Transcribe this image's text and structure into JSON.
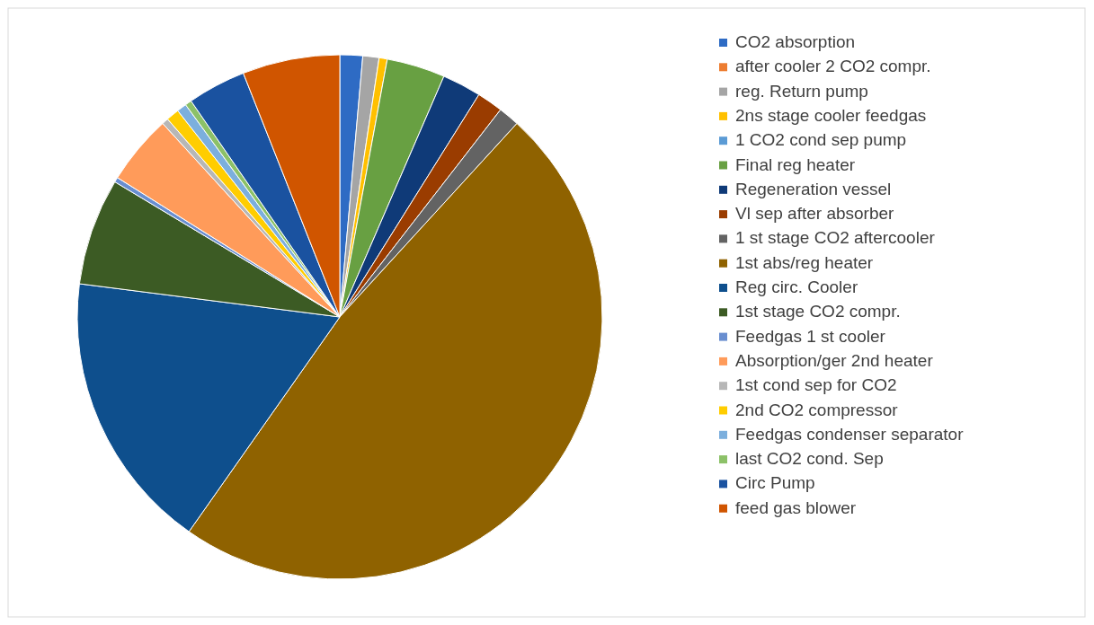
{
  "chart_data": {
    "type": "pie",
    "categories": [
      "CO2 absorption",
      "after cooler 2 CO2 compr.",
      "reg. Return pump",
      "2ns stage cooler feedgas",
      "1 CO2 cond sep pump",
      "Final reg heater",
      "Regeneration vessel",
      "Vl sep after absorber",
      "1 st stage CO2 aftercooler",
      "1st abs/reg heater",
      "Reg circ. Cooler",
      "1st stage CO2 compr.",
      "Feedgas 1 st cooler",
      "Absorption/ger 2nd heater",
      "1st cond sep for CO2",
      "2nd CO2 compressor",
      "Feedgas condenser separator",
      "last CO2 cond. Sep",
      "Circ Pump",
      "feed gas blower"
    ],
    "values": [
      1.4,
      null,
      1.0,
      0.5,
      null,
      3.6,
      2.4,
      1.6,
      1.3,
      48.0,
      17.3,
      6.6,
      0.3,
      4.3,
      0.4,
      0.8,
      0.6,
      0.4,
      3.6,
      6.0
    ],
    "colors": [
      "#2e6bc4",
      "#ed7d31",
      "#a5a5a5",
      "#ffc000",
      "#5b9bd5",
      "#68a042",
      "#0f3a78",
      "#9a3c00",
      "#636363",
      "#8f6200",
      "#0e4f8d",
      "#3c5b24",
      "#698ed0",
      "#ff9b5a",
      "#b7b7b7",
      "#ffcd00",
      "#7cafdd",
      "#8cc168",
      "#1a52a0",
      "#d05500"
    ],
    "legend": "right"
  }
}
